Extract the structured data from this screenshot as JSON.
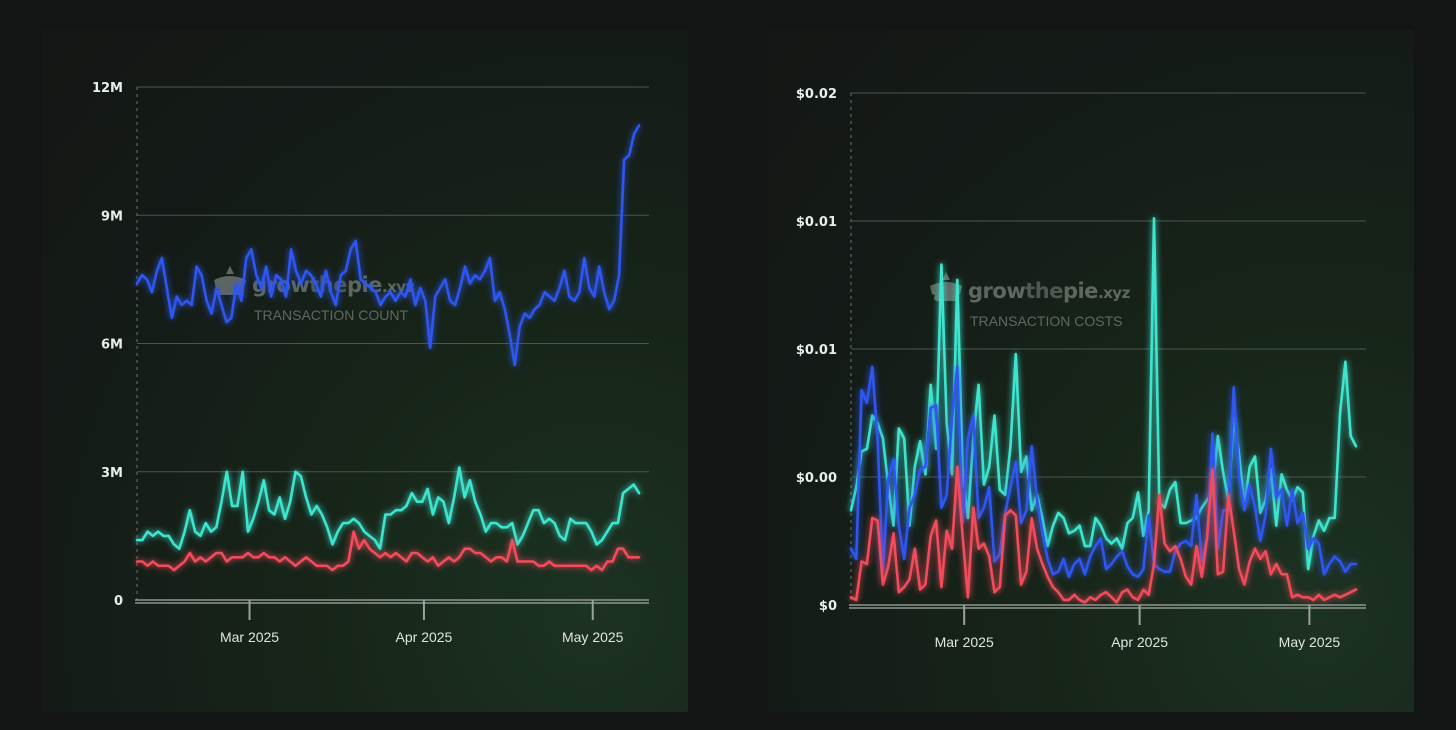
{
  "colors": {
    "blue": "#2f57f0",
    "cyan": "#3ee5cf",
    "red": "#f24c5c",
    "background": "#131414"
  },
  "charts": [
    {
      "watermark": {
        "brand_grow": "grow",
        "brand_the": "the",
        "brand_pie": "pie",
        "brand_tld": ".xyz",
        "caption": "TRANSACTION COUNT"
      },
      "chart_data": {
        "type": "line",
        "title": "",
        "ylim": [
          0,
          12000000
        ],
        "y_ticks": [
          0,
          3000000,
          6000000,
          9000000,
          12000000
        ],
        "y_tick_labels": [
          "0",
          "3M",
          "6M",
          "9M",
          "12M"
        ],
        "x_start": "2025-02-09",
        "x_end": "2025-05-11",
        "x_ticks": [
          {
            "date": "2025-03-01",
            "label": "Mar 2025"
          },
          {
            "date": "2025-04-01",
            "label": "Apr 2025"
          },
          {
            "date": "2025-05-01",
            "label": "May 2025"
          }
        ],
        "grid": true,
        "series": [
          {
            "color_key": "blue",
            "values": [
              7400000,
              7600000,
              7500000,
              7200000,
              7700000,
              8000000,
              7300000,
              6600000,
              7100000,
              6900000,
              7000000,
              6900000,
              7800000,
              7600000,
              7000000,
              6700000,
              7300000,
              6900000,
              6500000,
              6600000,
              7400000,
              7000000,
              8000000,
              8200000,
              7600000,
              7300000,
              7800000,
              7100000,
              7600000,
              7500000,
              7100000,
              8200000,
              7700000,
              7400000,
              7700000,
              7600000,
              7400000,
              7100000,
              7700000,
              7200000,
              6900000,
              7600000,
              7700000,
              8200000,
              8400000,
              7500000,
              7400000,
              7300000,
              7200000,
              6900000,
              7100000,
              7200000,
              7000000,
              7200000,
              7100000,
              7500000,
              6900000,
              7300000,
              7000000,
              5900000,
              7100000,
              7300000,
              7500000,
              7000000,
              6900000,
              7300000,
              7800000,
              7400000,
              7600000,
              7500000,
              7700000,
              8000000,
              7000000,
              7200000,
              6800000,
              6200000,
              5500000,
              6400000,
              6700000,
              6600000,
              6800000,
              6900000,
              7200000,
              7100000,
              7000000,
              7300000,
              7700000,
              7100000,
              7000000,
              7200000,
              8000000,
              7300000,
              7100000,
              7800000,
              7200000,
              6800000,
              7000000,
              7600000,
              10300000,
              10400000,
              10900000,
              11100000
            ]
          },
          {
            "color_key": "cyan",
            "values": [
              1400000,
              1400000,
              1600000,
              1500000,
              1600000,
              1500000,
              1500000,
              1300000,
              1200000,
              1600000,
              2100000,
              1600000,
              1500000,
              1800000,
              1600000,
              1700000,
              2300000,
              3000000,
              2200000,
              2200000,
              3000000,
              1600000,
              1900000,
              2300000,
              2800000,
              2100000,
              2000000,
              2400000,
              1900000,
              2300000,
              3000000,
              2900000,
              2400000,
              2000000,
              2200000,
              2000000,
              1700000,
              1300000,
              1600000,
              1800000,
              1800000,
              1900000,
              1800000,
              1600000,
              1500000,
              1400000,
              1200000,
              2000000,
              2000000,
              2100000,
              2100000,
              2200000,
              2500000,
              2300000,
              2300000,
              2600000,
              2000000,
              2400000,
              2300000,
              1800000,
              2400000,
              3100000,
              2400000,
              2800000,
              2300000,
              2000000,
              1600000,
              1800000,
              1800000,
              1700000,
              1700000,
              1800000,
              1300000,
              1500000,
              1800000,
              2100000,
              2100000,
              1800000,
              1900000,
              1800000,
              1500000,
              1400000,
              1900000,
              1800000,
              1800000,
              1800000,
              1600000,
              1300000,
              1400000,
              1600000,
              1800000,
              1800000,
              2500000,
              2600000,
              2700000,
              2500000
            ]
          },
          {
            "color_key": "red",
            "values": [
              900000,
              900000,
              800000,
              900000,
              800000,
              800000,
              800000,
              700000,
              800000,
              900000,
              1100000,
              900000,
              1000000,
              900000,
              1000000,
              1100000,
              1100000,
              900000,
              1000000,
              1000000,
              1000000,
              1100000,
              1000000,
              1000000,
              1100000,
              1000000,
              1000000,
              900000,
              1000000,
              900000,
              800000,
              900000,
              1000000,
              900000,
              800000,
              800000,
              800000,
              700000,
              800000,
              800000,
              900000,
              1600000,
              1200000,
              1400000,
              1200000,
              1100000,
              1000000,
              1100000,
              1000000,
              1100000,
              1000000,
              900000,
              1100000,
              1100000,
              1000000,
              900000,
              1000000,
              800000,
              900000,
              1000000,
              900000,
              1000000,
              1200000,
              1200000,
              1100000,
              1100000,
              1000000,
              900000,
              1000000,
              1000000,
              900000,
              1400000,
              900000,
              900000,
              900000,
              900000,
              800000,
              800000,
              900000,
              800000,
              800000,
              800000,
              800000,
              800000,
              800000,
              800000,
              700000,
              800000,
              700000,
              900000,
              900000,
              1200000,
              1200000,
              1000000,
              1000000,
              1000000
            ]
          }
        ]
      }
    },
    {
      "watermark": {
        "brand_grow": "grow",
        "brand_the": "the",
        "brand_pie": "pie",
        "brand_tld": ".xyz",
        "caption": "TRANSACTION COSTS"
      },
      "chart_data": {
        "type": "line",
        "title": "",
        "ylim": [
          0,
          0.02
        ],
        "y_ticks": [
          0,
          0.005,
          0.01,
          0.015,
          0.02
        ],
        "y_tick_labels": [
          "$0",
          "$0.00",
          "$0.01",
          "$0.01",
          "$0.02"
        ],
        "x_start": "2025-02-09",
        "x_end": "2025-05-11",
        "x_ticks": [
          {
            "date": "2025-03-01",
            "label": "Mar 2025"
          },
          {
            "date": "2025-04-01",
            "label": "Apr 2025"
          },
          {
            "date": "2025-05-01",
            "label": "May 2025"
          }
        ],
        "grid": true,
        "series": [
          {
            "color_key": "cyan",
            "values": [
              0.0037,
              0.0046,
              0.006,
              0.0061,
              0.0074,
              0.0071,
              0.0065,
              0.0047,
              0.0031,
              0.0069,
              0.0065,
              0.0031,
              0.0054,
              0.0064,
              0.0051,
              0.0086,
              0.0061,
              0.0133,
              0.0071,
              0.0051,
              0.0127,
              0.0053,
              0.0034,
              0.0065,
              0.0086,
              0.0047,
              0.0054,
              0.0074,
              0.0045,
              0.0043,
              0.0062,
              0.0098,
              0.0052,
              0.0058,
              0.0037,
              0.0043,
              0.0034,
              0.0023,
              0.0031,
              0.0036,
              0.0034,
              0.0028,
              0.0029,
              0.0031,
              0.0023,
              0.0023,
              0.0034,
              0.0031,
              0.0026,
              0.0024,
              0.0026,
              0.0022,
              0.0032,
              0.0034,
              0.0044,
              0.0027,
              0.0037,
              0.0151,
              0.004,
              0.0038,
              0.0045,
              0.0048,
              0.0032,
              0.0032,
              0.0033,
              0.0034,
              0.0038,
              0.0041,
              0.0044,
              0.0066,
              0.0052,
              0.0041,
              0.0073,
              0.0059,
              0.0039,
              0.0054,
              0.0058,
              0.0036,
              0.0041,
              0.0053,
              0.0031,
              0.0051,
              0.0045,
              0.0041,
              0.0046,
              0.0044,
              0.0014,
              0.0027,
              0.0033,
              0.0029,
              0.0034,
              0.0034,
              0.0075,
              0.0095,
              0.0066,
              0.0062
            ]
          },
          {
            "color_key": "blue",
            "values": [
              0.0022,
              0.0018,
              0.0084,
              0.0079,
              0.0093,
              0.0065,
              0.0013,
              0.0049,
              0.0057,
              0.0031,
              0.0018,
              0.0038,
              0.0043,
              0.0053,
              0.0054,
              0.0077,
              0.0078,
              0.0038,
              0.0043,
              0.0073,
              0.0093,
              0.0032,
              0.0065,
              0.0074,
              0.0034,
              0.0038,
              0.0046,
              0.0017,
              0.002,
              0.0036,
              0.0046,
              0.0056,
              0.0032,
              0.0037,
              0.0062,
              0.0041,
              0.0028,
              0.0018,
              0.0012,
              0.0013,
              0.0018,
              0.0011,
              0.0016,
              0.0018,
              0.0012,
              0.0019,
              0.0023,
              0.0026,
              0.0014,
              0.0016,
              0.0019,
              0.0021,
              0.0015,
              0.0012,
              0.0011,
              0.0014,
              0.0035,
              0.0016,
              0.0014,
              0.0013,
              0.0013,
              0.0021,
              0.0024,
              0.0025,
              0.0023,
              0.0043,
              0.0017,
              0.0026,
              0.0067,
              0.0022,
              0.0037,
              0.0037,
              0.0085,
              0.005,
              0.0037,
              0.0047,
              0.0038,
              0.0025,
              0.0035,
              0.0061,
              0.0042,
              0.0045,
              0.0031,
              0.0045,
              0.0032,
              0.0036,
              0.0022,
              0.0026,
              0.0024,
              0.0012,
              0.0016,
              0.0019,
              0.0017,
              0.0013,
              0.0016,
              0.0016
            ]
          },
          {
            "color_key": "red",
            "values": [
              0.0003,
              0.0002,
              0.0017,
              0.0016,
              0.0034,
              0.0033,
              0.0008,
              0.0015,
              0.0028,
              0.0005,
              0.0007,
              0.001,
              0.0022,
              0.0006,
              0.0008,
              0.0027,
              0.0033,
              0.0007,
              0.0029,
              0.0022,
              0.0054,
              0.0027,
              0.0003,
              0.0038,
              0.0022,
              0.0024,
              0.0019,
              0.0005,
              0.0007,
              0.0035,
              0.0037,
              0.0035,
              0.0008,
              0.0013,
              0.0034,
              0.0022,
              0.0016,
              0.0011,
              0.0007,
              0.0005,
              0.0002,
              0.0002,
              0.0004,
              0.0002,
              0.0001,
              0.0003,
              0.0002,
              0.0004,
              0.0005,
              0.0003,
              0.0001,
              0.0005,
              0.0006,
              0.0003,
              0.0002,
              0.0006,
              0.0004,
              0.0016,
              0.0043,
              0.0024,
              0.0021,
              0.0023,
              0.0018,
              0.0011,
              0.0008,
              0.0023,
              0.0011,
              0.0027,
              0.0053,
              0.0012,
              0.0013,
              0.0043,
              0.0029,
              0.0014,
              0.0008,
              0.0017,
              0.0022,
              0.0018,
              0.0021,
              0.0012,
              0.0016,
              0.0012,
              0.0012,
              0.0003,
              0.0004,
              0.0003,
              0.0003,
              0.0002,
              0.0004,
              0.0002,
              0.0003,
              0.0004,
              0.0003,
              0.0004,
              0.0005,
              0.0006
            ]
          }
        ]
      }
    }
  ]
}
